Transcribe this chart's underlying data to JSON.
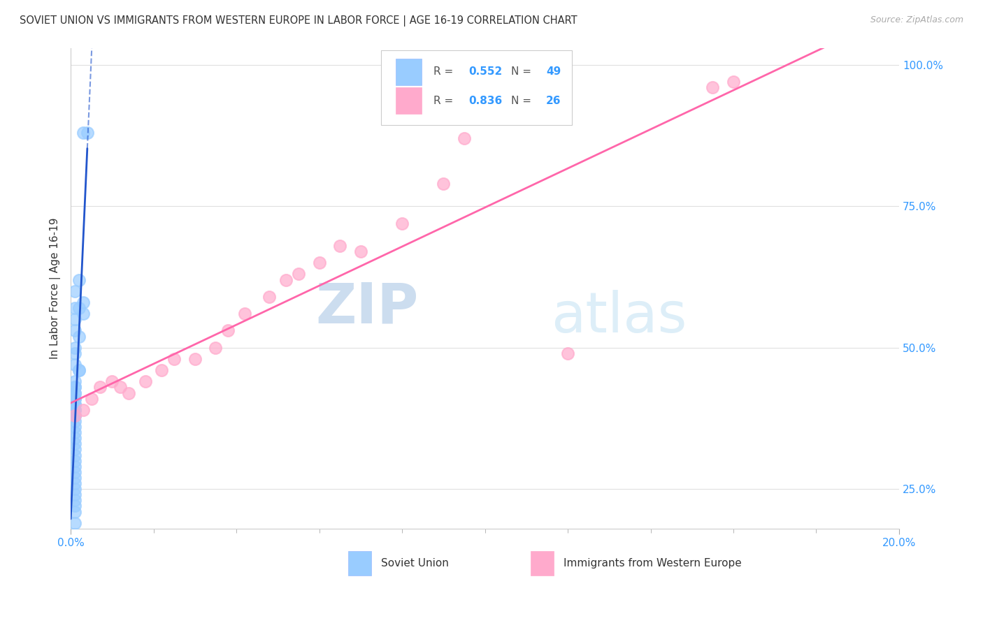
{
  "title": "SOVIET UNION VS IMMIGRANTS FROM WESTERN EUROPE IN LABOR FORCE | AGE 16-19 CORRELATION CHART",
  "source": "Source: ZipAtlas.com",
  "ylabel": "In Labor Force | Age 16-19",
  "y_ticks": [
    0.25,
    0.5,
    0.75,
    1.0
  ],
  "y_tick_labels": [
    "25.0%",
    "50.0%",
    "75.0%",
    "100.0%"
  ],
  "blue_label": "Soviet Union",
  "pink_label": "Immigrants from Western Europe",
  "blue_R": "0.552",
  "blue_N": "49",
  "pink_R": "0.836",
  "pink_N": "26",
  "value_color": "#3399ff",
  "label_color": "#333333",
  "blue_scatter_color": "#99ccff",
  "pink_scatter_color": "#ffaacc",
  "blue_line_color": "#2255cc",
  "pink_line_color": "#ff66aa",
  "background_color": "#ffffff",
  "watermark_color_zip": "#c8dff0",
  "watermark_color_atlas": "#d8eef8",
  "grid_color": "#e0e0e0",
  "blue_scatter_x": [
    0.003,
    0.004,
    0.002,
    0.003,
    0.001,
    0.002,
    0.001,
    0.003,
    0.001,
    0.001,
    0.002,
    0.001,
    0.001,
    0.001,
    0.002,
    0.002,
    0.001,
    0.001,
    0.001,
    0.001,
    0.001,
    0.001,
    0.001,
    0.001,
    0.001,
    0.001,
    0.001,
    0.001,
    0.001,
    0.001,
    0.001,
    0.001,
    0.001,
    0.001,
    0.001,
    0.001,
    0.001,
    0.001,
    0.001,
    0.001,
    0.001,
    0.001,
    0.001,
    0.001,
    0.001,
    0.001,
    0.001,
    0.001,
    0.001
  ],
  "blue_scatter_y": [
    0.88,
    0.88,
    0.62,
    0.58,
    0.6,
    0.57,
    0.57,
    0.56,
    0.55,
    0.53,
    0.52,
    0.5,
    0.49,
    0.47,
    0.46,
    0.46,
    0.44,
    0.43,
    0.43,
    0.42,
    0.42,
    0.41,
    0.41,
    0.4,
    0.4,
    0.39,
    0.39,
    0.38,
    0.38,
    0.37,
    0.36,
    0.35,
    0.34,
    0.33,
    0.32,
    0.31,
    0.3,
    0.29,
    0.28,
    0.27,
    0.26,
    0.25,
    0.24,
    0.23,
    0.22,
    0.21,
    0.19,
    0.17,
    0.15
  ],
  "pink_scatter_x": [
    0.001,
    0.003,
    0.005,
    0.007,
    0.01,
    0.012,
    0.014,
    0.018,
    0.022,
    0.025,
    0.03,
    0.035,
    0.038,
    0.042,
    0.048,
    0.052,
    0.055,
    0.06,
    0.065,
    0.07,
    0.08,
    0.09,
    0.095,
    0.12,
    0.155,
    0.16
  ],
  "pink_scatter_y": [
    0.38,
    0.39,
    0.41,
    0.43,
    0.44,
    0.43,
    0.42,
    0.44,
    0.46,
    0.48,
    0.48,
    0.5,
    0.53,
    0.56,
    0.59,
    0.62,
    0.63,
    0.65,
    0.68,
    0.67,
    0.72,
    0.79,
    0.87,
    0.49,
    0.96,
    0.97
  ],
  "xlim": [
    0.0,
    0.2
  ],
  "ylim": [
    0.18,
    1.03
  ]
}
